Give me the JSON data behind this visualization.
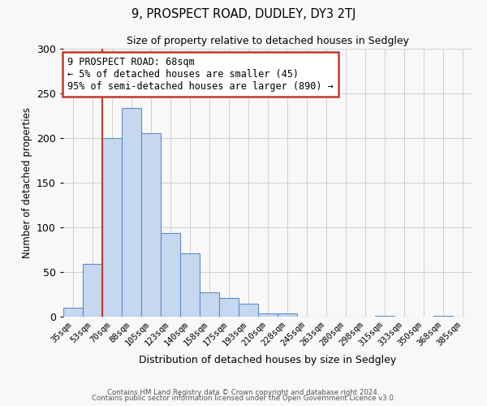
{
  "title": "9, PROSPECT ROAD, DUDLEY, DY3 2TJ",
  "subtitle": "Size of property relative to detached houses in Sedgley",
  "xlabel": "Distribution of detached houses by size in Sedgley",
  "ylabel": "Number of detached properties",
  "bar_labels": [
    "35sqm",
    "53sqm",
    "70sqm",
    "88sqm",
    "105sqm",
    "123sqm",
    "140sqm",
    "158sqm",
    "175sqm",
    "193sqm",
    "210sqm",
    "228sqm",
    "245sqm",
    "263sqm",
    "280sqm",
    "298sqm",
    "315sqm",
    "333sqm",
    "350sqm",
    "368sqm",
    "385sqm"
  ],
  "bar_values": [
    10,
    59,
    200,
    234,
    205,
    94,
    71,
    27,
    21,
    15,
    4,
    4,
    0,
    0,
    0,
    0,
    1,
    0,
    0,
    1,
    0
  ],
  "bar_color": "#c5d8f0",
  "bar_edge_color": "#5b8fc9",
  "vline_color": "#c0392b",
  "annotation_line1": "9 PROSPECT ROAD: 68sqm",
  "annotation_line2": "← 5% of detached houses are smaller (45)",
  "annotation_line3": "95% of semi-detached houses are larger (890) →",
  "annotation_box_color": "#c0392b",
  "ylim": [
    0,
    300
  ],
  "yticks": [
    0,
    50,
    100,
    150,
    200,
    250,
    300
  ],
  "footer1": "Contains HM Land Registry data © Crown copyright and database right 2024.",
  "footer2": "Contains public sector information licensed under the Open Government Licence v3.0.",
  "background_color": "#f8f8f8",
  "grid_color": "#d0d0d0"
}
